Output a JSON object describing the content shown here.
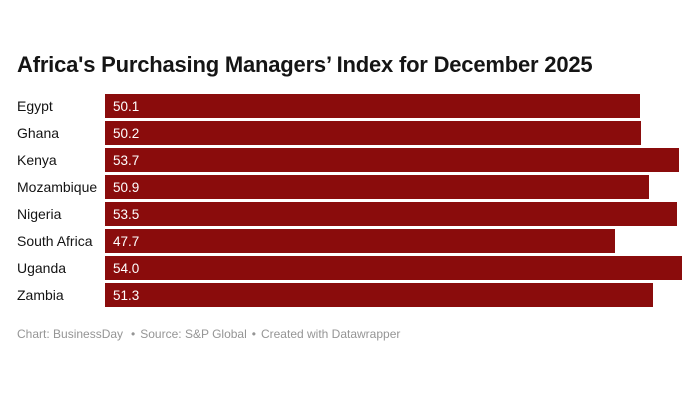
{
  "title": "Africa's Purchasing Managers’ Index for December 2025",
  "footer": {
    "chart_credit": "Chart: BusinessDay",
    "source": "Source: S&P Global",
    "tool_credit": "Created with Datawrapper",
    "separator": "•"
  },
  "colors": {
    "background": "#ffffff",
    "bar": "#8a0c0c",
    "bar_value_text": "#ffffff",
    "title_text": "#151515",
    "label_text": "#131313",
    "footer_text": "#959595"
  },
  "chart_data": {
    "type": "bar",
    "orientation": "horizontal",
    "title": "Africa's Purchasing Managers’ Index for December 2025",
    "categories": [
      "Egypt",
      "Ghana",
      "Kenya",
      "Mozambique",
      "Nigeria",
      "South Africa",
      "Uganda",
      "Zambia"
    ],
    "values": [
      50.1,
      50.2,
      53.7,
      50.9,
      53.5,
      47.7,
      54.0,
      51.3
    ],
    "value_labels": [
      "50.1",
      "50.2",
      "53.7",
      "50.9",
      "53.5",
      "47.7",
      "54.0",
      "51.3"
    ],
    "xlabel": "",
    "ylabel": "",
    "xlim": [
      0,
      54.0
    ],
    "grid": false,
    "legend": false,
    "value_label_position": "inside-left"
  }
}
